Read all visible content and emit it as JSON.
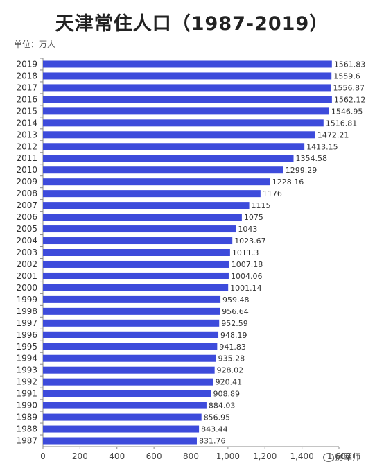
{
  "title": "天津常住人口（1987-2019）",
  "unit_label": "单位：万人",
  "watermark": "房军师",
  "bar_color": "#3D4BDB",
  "chart_data": {
    "type": "bar",
    "orientation": "horizontal",
    "title": "天津常住人口（1987-2019）",
    "unit": "万人",
    "categories": [
      "2019",
      "2018",
      "2017",
      "2016",
      "2015",
      "2014",
      "2013",
      "2012",
      "2011",
      "2010",
      "2009",
      "2008",
      "2007",
      "2006",
      "2005",
      "2004",
      "2003",
      "2002",
      "2001",
      "2000",
      "1999",
      "1998",
      "1997",
      "1996",
      "1995",
      "1994",
      "1993",
      "1992",
      "1991",
      "1990",
      "1989",
      "1988",
      "1987"
    ],
    "values": [
      1561.83,
      1559.6,
      1556.87,
      1562.12,
      1546.95,
      1516.81,
      1472.21,
      1413.15,
      1354.58,
      1299.29,
      1228.16,
      1176,
      1115,
      1075,
      1043,
      1023.67,
      1011.3,
      1007.18,
      1004.06,
      1001.14,
      959.48,
      956.64,
      952.59,
      948.19,
      941.83,
      935.28,
      928.02,
      920.41,
      908.89,
      884.03,
      856.95,
      843.44,
      831.76
    ],
    "value_labels": [
      "1561.83",
      "1559.6",
      "1556.87",
      "1562.12",
      "1546.95",
      "1516.81",
      "1472.21",
      "1413.15",
      "1354.58",
      "1299.29",
      "1228.16",
      "1176",
      "1115",
      "1075",
      "1043",
      "1023.67",
      "1011.3",
      "1007.18",
      "1004.06",
      "1001.14",
      "959.48",
      "956.64",
      "952.59",
      "948.19",
      "941.83",
      "935.28",
      "928.02",
      "920.41",
      "908.89",
      "884.03",
      "856.95",
      "843.44",
      "831.76"
    ],
    "xlim": [
      0,
      1600
    ],
    "xticks": [
      0,
      200,
      400,
      600,
      800,
      1000,
      1200,
      1400,
      1600
    ],
    "xtick_labels": [
      "0",
      "200",
      "400",
      "600",
      "800",
      "1,000",
      "1,200",
      "1,400",
      "1,600"
    ]
  }
}
